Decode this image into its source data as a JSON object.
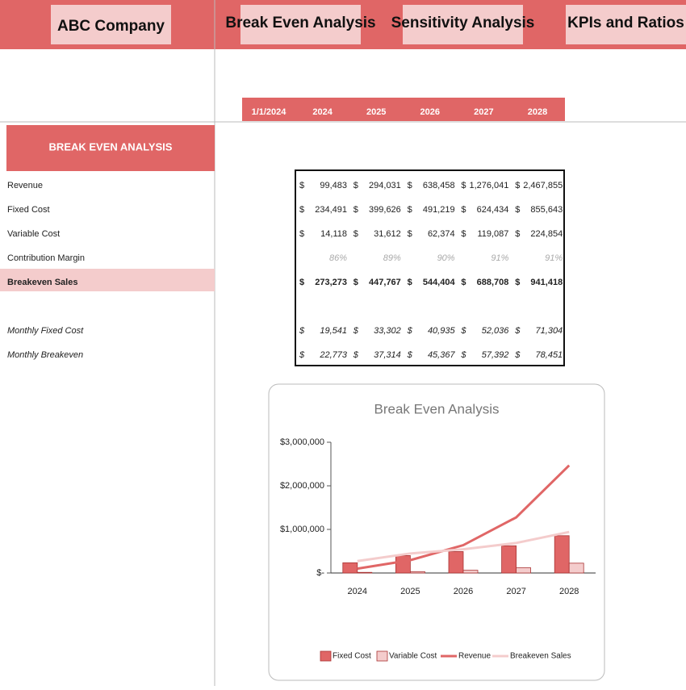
{
  "nav": {
    "company": "ABC Company",
    "tabs": [
      "Break Even Analysis",
      "Sensitivity Analysis",
      "KPIs and Ratios"
    ]
  },
  "header_row": [
    "1/1/2024",
    "2024",
    "2025",
    "2026",
    "2027",
    "2028"
  ],
  "section_title": "BREAK EVEN ANALYSIS",
  "currency_symbol": "$",
  "table": {
    "rows": [
      {
        "label": "Revenue",
        "currency": true,
        "cells": [
          "99,483",
          "294,031",
          "638,458",
          "1,276,041",
          "2,467,855"
        ]
      },
      {
        "label": "Fixed Cost",
        "currency": true,
        "cells": [
          "234,491",
          "399,626",
          "491,219",
          "624,434",
          "855,643"
        ]
      },
      {
        "label": "Variable Cost",
        "currency": true,
        "cells": [
          "14,118",
          "31,612",
          "62,374",
          "119,087",
          "224,854"
        ]
      },
      {
        "label": "Contribution Margin",
        "currency": false,
        "cells": [
          "86%",
          "89%",
          "90%",
          "91%",
          "91%"
        ]
      },
      {
        "label": "Breakeven Sales",
        "currency": true,
        "cells": [
          "273,273",
          "447,767",
          "544,404",
          "688,708",
          "941,418"
        ]
      },
      {
        "label": "Monthly Fixed Cost",
        "currency": true,
        "cells": [
          "19,541",
          "33,302",
          "40,935",
          "52,036",
          "71,304"
        ]
      },
      {
        "label": "Monthly Breakeven",
        "currency": true,
        "cells": [
          "22,773",
          "37,314",
          "45,367",
          "57,392",
          "78,451"
        ]
      }
    ]
  },
  "chart_data": {
    "type": "bar",
    "title": "Break Even Analysis",
    "categories": [
      "2024",
      "2025",
      "2026",
      "2027",
      "2028"
    ],
    "series": [
      {
        "name": "Fixed Cost",
        "type": "bar",
        "color": "#e06666",
        "values": [
          234491,
          399626,
          491219,
          624434,
          855643
        ]
      },
      {
        "name": "Variable Cost",
        "type": "bar",
        "color": "#f4cccc",
        "values": [
          14118,
          31612,
          62374,
          119087,
          224854
        ]
      },
      {
        "name": "Revenue",
        "type": "line",
        "color": "#e06666",
        "values": [
          99483,
          294031,
          638458,
          1276041,
          2467855
        ]
      },
      {
        "name": "Breakeven Sales",
        "type": "line",
        "color": "#f4cccc",
        "values": [
          273273,
          447767,
          544404,
          688708,
          941418
        ]
      }
    ],
    "ylim": [
      0,
      3000000
    ],
    "yticks": [
      {
        "value": 0,
        "label": "$-"
      },
      {
        "value": 1000000,
        "label": "$1,000,000"
      },
      {
        "value": 2000000,
        "label": "$2,000,000"
      },
      {
        "value": 3000000,
        "label": "$3,000,000"
      }
    ],
    "legend": "bottom"
  }
}
